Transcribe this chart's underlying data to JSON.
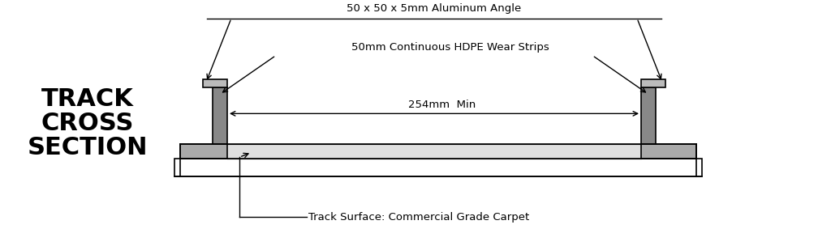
{
  "title": "TRACK\nCROSS\nSECTION",
  "title_fontsize": 22,
  "title_fontweight": "black",
  "bg_color": "#ffffff",
  "label_aluminum": "50 x 50 x 5mm Aluminum Angle",
  "label_hdpe": "50mm Continuous HDPE Wear Strips",
  "label_254": "254mm  Min",
  "label_carpet": "Track Surface: Commercial Grade Carpet",
  "line_color": "#000000",
  "wall_color": "#888888",
  "carpet_color": "#e0e0e0",
  "flange_color": "#aaaaaa",
  "cap_color": "#bbbbbb"
}
